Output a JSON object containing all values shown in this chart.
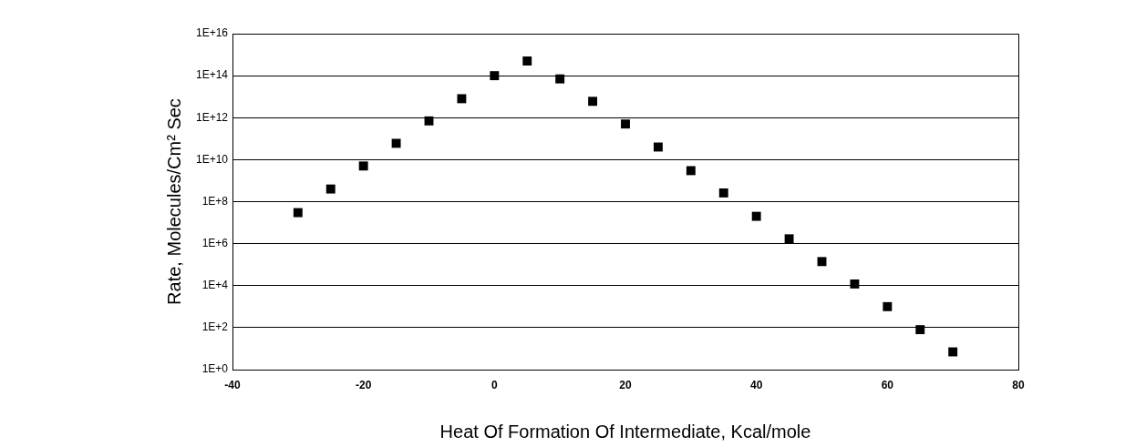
{
  "chart_data": {
    "type": "scatter",
    "xlabel": "Heat Of Formation Of Intermediate, Kcal/mole",
    "ylabel": "Rate, Molecules/Cm² Sec",
    "x": [
      -30,
      -25,
      -20,
      -15,
      -10,
      -5,
      0,
      5,
      10,
      15,
      20,
      25,
      30,
      35,
      40,
      45,
      50,
      55,
      60,
      65,
      70
    ],
    "series": [
      {
        "color": "#000000",
        "values": [
          30000000.0,
          400000000.0,
          5000000000.0,
          60000000000.0,
          700000000000.0,
          8000000000000.0,
          100000000000000.0,
          500000000000000.0,
          70000000000000.0,
          6000000000000.0,
          500000000000.0,
          40000000000.0,
          3000000000.0,
          260000000.0,
          20000000.0,
          1700000.0,
          140000.0,
          12000.0,
          1000.0,
          80,
          7
        ]
      }
    ],
    "xlim": [
      -40,
      80
    ],
    "xticks": [
      -40,
      -20,
      0,
      20,
      40,
      60,
      80
    ],
    "ylim": [
      1,
      1e+16
    ],
    "yticks": [
      {
        "value": 1,
        "label": "1E+0"
      },
      {
        "value": 100,
        "label": "1E+2"
      },
      {
        "value": 10000,
        "label": "1E+4"
      },
      {
        "value": 1000000,
        "label": "1E+6"
      },
      {
        "value": 100000000,
        "label": "1E+8"
      },
      {
        "value": 10000000000,
        "label": "1E+10"
      },
      {
        "value": 1000000000000,
        "label": "1E+12"
      },
      {
        "value": 100000000000000,
        "label": "1E+14"
      },
      {
        "value": 10000000000000000,
        "label": "1E+16"
      }
    ],
    "log": "y",
    "grid": "y",
    "marker": "square",
    "legend": false
  }
}
